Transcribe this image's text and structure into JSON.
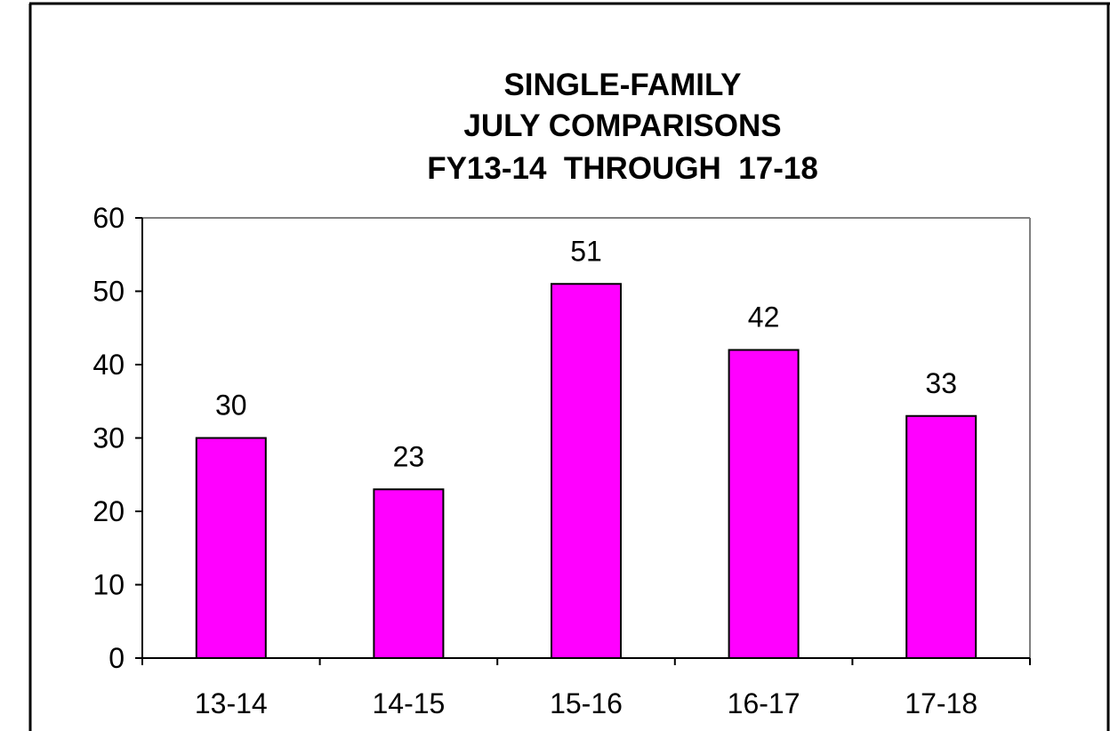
{
  "chart_data": {
    "type": "bar",
    "title_lines": [
      "SINGLE-FAMILY",
      "JULY COMPARISONS",
      "FY13-14  THROUGH  17-18"
    ],
    "categories": [
      "13-14",
      "14-15",
      "15-16",
      "16-17",
      "17-18"
    ],
    "values": [
      30,
      23,
      51,
      42,
      33
    ],
    "data_labels": [
      "30",
      "23",
      "51",
      "42",
      "33"
    ],
    "xlabel": "",
    "ylabel": "",
    "ylim": [
      0,
      60
    ],
    "y_ticks": [
      0,
      10,
      20,
      30,
      40,
      50,
      60
    ],
    "y_tick_labels": [
      "0",
      "10",
      "20",
      "30",
      "40",
      "50",
      "60"
    ],
    "grid": false,
    "legend": "none",
    "bar_color": "#ff00ff",
    "bar_edge_color": "#000000",
    "plot_border_color": "#808080"
  }
}
